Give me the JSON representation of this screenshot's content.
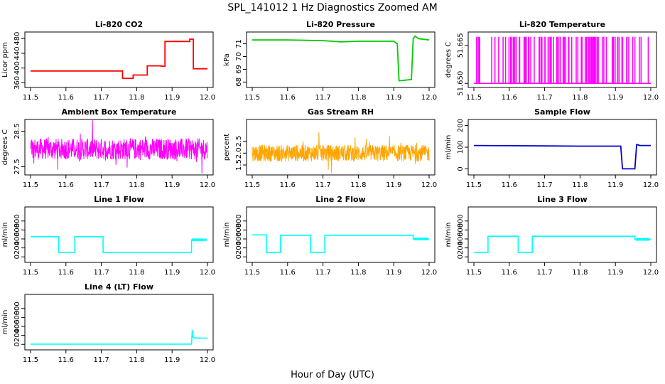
{
  "figure": {
    "title": "SPL_141012 1 Hz Diagnostics Zoomed AM",
    "xlabel": "Hour of Day (UTC)"
  },
  "chart_data": [
    {
      "type": "line",
      "title": "Li-820 CO2",
      "ylabel": "Licor ppm",
      "color": "#ff0000",
      "xlim": [
        11.5,
        12.0
      ],
      "ylim": [
        355,
        490
      ],
      "xticks": [
        "11.5",
        "11.6",
        "11.7",
        "11.8",
        "11.9",
        "12.0"
      ],
      "yticks": [
        {
          "v": 360,
          "l": "360"
        },
        {
          "v": 400,
          "l": "400"
        },
        {
          "v": 440,
          "l": "440"
        },
        {
          "v": 480,
          "l": "480"
        }
      ],
      "x": [
        11.5,
        11.6,
        11.76,
        11.76,
        11.79,
        11.79,
        11.83,
        11.83,
        11.87,
        11.87,
        11.88,
        11.88,
        11.95,
        11.95,
        11.96,
        11.96,
        12.0
      ],
      "y": [
        392,
        392,
        392,
        372,
        372,
        381,
        381,
        406,
        406,
        405,
        405,
        472,
        472,
        478,
        478,
        398,
        398
      ]
    },
    {
      "type": "line",
      "title": "Li-820 Pressure",
      "ylabel": "kPa",
      "color": "#00cc00",
      "xlim": [
        11.5,
        12.0
      ],
      "ylim": [
        67.8,
        71.7
      ],
      "xticks": [
        "11.5",
        "11.6",
        "11.7",
        "11.8",
        "11.9",
        "12.0"
      ],
      "yticks": [
        {
          "v": 68,
          "l": "68"
        },
        {
          "v": 69,
          "l": "69"
        },
        {
          "v": 70,
          "l": "70"
        },
        {
          "v": 71,
          "l": "71"
        }
      ],
      "x": [
        11.5,
        11.6,
        11.7,
        11.75,
        11.8,
        11.9,
        11.91,
        11.915,
        11.95,
        11.955,
        11.96,
        11.97,
        12.0
      ],
      "y": [
        71.3,
        71.3,
        71.25,
        71.15,
        71.2,
        71.2,
        71.0,
        68.1,
        68.2,
        71.4,
        71.6,
        71.4,
        71.3
      ]
    },
    {
      "type": "line",
      "title": "Li-820 Temperature",
      "ylabel": "degrees C",
      "color": "#ff00ff",
      "xlim": [
        11.5,
        12.0
      ],
      "ylim": [
        51.6495,
        51.6692
      ],
      "xticks": [
        "11.5",
        "11.6",
        "11.7",
        "11.8",
        "11.9",
        "12.0"
      ],
      "yticks": [
        {
          "v": 51.65,
          "l": "51.650"
        },
        {
          "v": 51.665,
          "l": "51.665"
        }
      ],
      "x": [
        11.5,
        11.51,
        11.52,
        11.54,
        11.55,
        11.58,
        11.6,
        11.63,
        11.65,
        11.68,
        11.7,
        11.72,
        11.75,
        11.78,
        11.8,
        11.83,
        11.85,
        11.88,
        11.9,
        11.93,
        11.95,
        11.97,
        11.99
      ],
      "y": [
        51.65,
        51.668,
        51.65,
        51.668,
        51.65,
        51.668,
        51.65,
        51.668,
        51.65,
        51.668,
        51.65,
        51.668,
        51.65,
        51.668,
        51.65,
        51.668,
        51.65,
        51.668,
        51.65,
        51.668,
        51.65,
        51.668,
        51.65
      ]
    },
    {
      "type": "line",
      "title": "Ambient Box Temperature",
      "ylabel": "degrees C",
      "color": "#ff00ff",
      "xlim": [
        11.5,
        12.0
      ],
      "ylim": [
        27.35,
        28.75
      ],
      "xticks": [
        "11.5",
        "11.6",
        "11.7",
        "11.8",
        "11.9",
        "12.0"
      ],
      "yticks": [
        {
          "v": 27.5,
          "l": "27.5"
        },
        {
          "v": 28.5,
          "l": "28.5"
        }
      ],
      "x": [
        11.5,
        11.6,
        11.7,
        11.8,
        11.9,
        11.95,
        12.0
      ],
      "y": [
        28.0,
        28.0,
        28.0,
        28.0,
        28.0,
        28.1,
        28.0
      ]
    },
    {
      "type": "line",
      "title": "Gas Stream RH",
      "ylabel": "percent",
      "color": "#ffa500",
      "xlim": [
        11.5,
        12.0
      ],
      "ylim": [
        1.2,
        3.3
      ],
      "xticks": [
        "11.5",
        "11.6",
        "11.7",
        "11.8",
        "11.9",
        "12.0"
      ],
      "yticks": [
        {
          "v": 1.5,
          "l": "1.5"
        },
        {
          "v": 2.0,
          "l": "2.0"
        },
        {
          "v": 2.5,
          "l": "2.5"
        }
      ],
      "x": [
        11.5,
        11.6,
        11.7,
        11.8,
        11.9,
        12.0
      ],
      "y": [
        2.0,
        2.0,
        2.0,
        2.0,
        2.0,
        2.0
      ]
    },
    {
      "type": "line",
      "title": "Sample Flow",
      "ylabel": "ml/min",
      "color": "#0000cc",
      "xlim": [
        11.5,
        12.0
      ],
      "ylim": [
        -15,
        215
      ],
      "xticks": [
        "11.5",
        "11.6",
        "11.7",
        "11.8",
        "11.9",
        "12.0"
      ],
      "yticks": [
        {
          "v": 0,
          "l": "0"
        },
        {
          "v": 100,
          "l": "100"
        },
        {
          "v": 200,
          "l": "200"
        }
      ],
      "x": [
        11.5,
        11.6,
        11.7,
        11.8,
        11.915,
        11.92,
        11.955,
        11.96,
        11.97,
        12.0
      ],
      "y": [
        108,
        107,
        106,
        105,
        105,
        0,
        0,
        112,
        108,
        108
      ]
    },
    {
      "type": "line",
      "title": "Line 1 Flow",
      "ylabel": "ml/min",
      "color": "#00ffff",
      "xlim": [
        11.5,
        12.0
      ],
      "ylim": [
        -60,
        1050
      ],
      "xticks": [
        "11.5",
        "11.6",
        "11.7",
        "11.8",
        "11.9",
        "12.0"
      ],
      "yticks": [
        {
          "v": 0,
          "l": "0"
        },
        {
          "v": 200,
          "l": "200"
        },
        {
          "v": 400,
          "l": "400"
        },
        {
          "v": 600,
          "l": "600"
        },
        {
          "v": 800,
          "l": "800"
        }
      ],
      "x": [
        11.5,
        11.58,
        11.58,
        11.625,
        11.625,
        11.705,
        11.705,
        11.955,
        11.955,
        12.0
      ],
      "y": [
        450,
        450,
        100,
        100,
        450,
        450,
        100,
        100,
        380,
        380
      ]
    },
    {
      "type": "line",
      "title": "Line 2 Flow",
      "ylabel": "ml/min",
      "color": "#00ffff",
      "xlim": [
        11.5,
        12.0
      ],
      "ylim": [
        -60,
        1050
      ],
      "xticks": [
        "11.5",
        "11.6",
        "11.7",
        "11.8",
        "11.9",
        "12.0"
      ],
      "yticks": [
        {
          "v": 0,
          "l": "0"
        },
        {
          "v": 200,
          "l": "200"
        },
        {
          "v": 400,
          "l": "400"
        },
        {
          "v": 600,
          "l": "600"
        },
        {
          "v": 800,
          "l": "800"
        }
      ],
      "x": [
        11.5,
        11.54,
        11.54,
        11.58,
        11.58,
        11.665,
        11.665,
        11.705,
        11.705,
        11.955,
        11.955,
        12.0
      ],
      "y": [
        490,
        490,
        100,
        100,
        480,
        480,
        100,
        100,
        480,
        480,
        400,
        400
      ]
    },
    {
      "type": "line",
      "title": "Line 3 Flow",
      "ylabel": "ml/min",
      "color": "#00ffff",
      "xlim": [
        11.5,
        12.0
      ],
      "ylim": [
        -60,
        1050
      ],
      "xticks": [
        "11.5",
        "11.6",
        "11.7",
        "11.8",
        "11.9",
        "12.0"
      ],
      "yticks": [
        {
          "v": 0,
          "l": "0"
        },
        {
          "v": 200,
          "l": "200"
        },
        {
          "v": 400,
          "l": "400"
        },
        {
          "v": 600,
          "l": "600"
        },
        {
          "v": 800,
          "l": "800"
        }
      ],
      "x": [
        11.5,
        11.54,
        11.54,
        11.625,
        11.625,
        11.665,
        11.665,
        11.955,
        11.955,
        12.0
      ],
      "y": [
        100,
        100,
        460,
        460,
        100,
        100,
        460,
        460,
        390,
        390
      ]
    },
    {
      "type": "line",
      "title": "Line 4 (LT) Flow",
      "ylabel": "ml/min",
      "color": "#00ffff",
      "xlim": [
        11.5,
        12.0
      ],
      "ylim": [
        -60,
        1050
      ],
      "xticks": [
        "11.5",
        "11.6",
        "11.7",
        "11.8",
        "11.9",
        "12.0"
      ],
      "yticks": [
        {
          "v": 0,
          "l": "0"
        },
        {
          "v": 200,
          "l": "200"
        },
        {
          "v": 400,
          "l": "400"
        },
        {
          "v": 600,
          "l": "600"
        },
        {
          "v": 800,
          "l": "800"
        }
      ],
      "x": [
        11.5,
        11.6,
        11.7,
        11.8,
        11.9,
        11.955,
        11.957,
        11.96,
        11.97,
        12.0
      ],
      "y": [
        5,
        5,
        5,
        5,
        5,
        5,
        320,
        150,
        140,
        140
      ]
    }
  ]
}
